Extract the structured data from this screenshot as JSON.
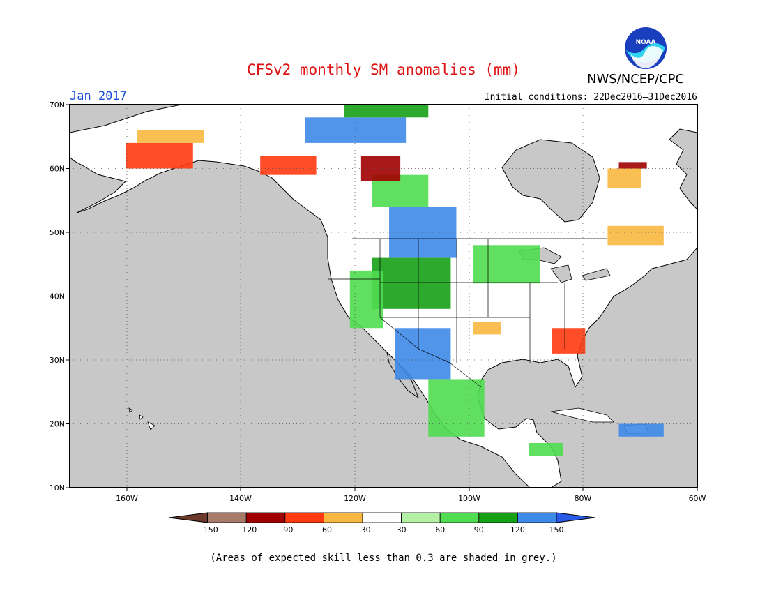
{
  "title": "CFSv2 monthly SM anomalies (mm)",
  "month": "Jan 2017",
  "initial_conditions": "Initial conditions: 22Dec2016–31Dec2016",
  "agency": "NWS/NCEP/CPC",
  "logo_text": "NOAA",
  "footnote": "(Areas of expected skill less than 0.3 are shaded in grey.)",
  "map": {
    "lon_range": [
      -172,
      -60
    ],
    "lat_range": [
      10,
      70
    ],
    "lat_labels": [
      "10N",
      "20N",
      "30N",
      "40N",
      "50N",
      "60N",
      "70N"
    ],
    "lon_labels": [
      "160W",
      "140W",
      "120W",
      "100W",
      "80W",
      "60W"
    ],
    "gridlines": true,
    "colors": {
      "grey_low_skill": "#c8c8c8",
      "land": "#ffffff",
      "coast": "#000000"
    }
  },
  "colorbar": {
    "ticks": [
      "−150",
      "−120",
      "−90",
      "−60",
      "−30",
      "30",
      "60",
      "90",
      "120",
      "150"
    ],
    "colors": [
      "#6b3a2a",
      "#a87a6a",
      "#a00000",
      "#ff3a10",
      "#f8b840",
      "#ffffff",
      "#b4f0a4",
      "#50dc50",
      "#16a016",
      "#3e8ae8",
      "#2a5ae8"
    ]
  },
  "anomaly_regions": [
    {
      "lon": [
        -115,
        -103
      ],
      "lat": [
        46,
        54
      ],
      "color": "#3e8ae8"
    },
    {
      "lon": [
        -118,
        -104
      ],
      "lat": [
        38,
        46
      ],
      "color": "#16a016"
    },
    {
      "lon": [
        -114,
        -104
      ],
      "lat": [
        27,
        35
      ],
      "color": "#3e8ae8"
    },
    {
      "lon": [
        -108,
        -98
      ],
      "lat": [
        18,
        27
      ],
      "color": "#50dc50"
    },
    {
      "lon": [
        -122,
        -116
      ],
      "lat": [
        35,
        44
      ],
      "color": "#50dc50"
    },
    {
      "lon": [
        -100,
        -88
      ],
      "lat": [
        42,
        48
      ],
      "color": "#50dc50"
    },
    {
      "lon": [
        -118,
        -108
      ],
      "lat": [
        54,
        59
      ],
      "color": "#50dc50"
    },
    {
      "lon": [
        -138,
        -128
      ],
      "lat": [
        59,
        62
      ],
      "color": "#ff3a10"
    },
    {
      "lon": [
        -120,
        -113
      ],
      "lat": [
        58,
        62
      ],
      "color": "#a00000"
    },
    {
      "lon": [
        -162,
        -150
      ],
      "lat": [
        60,
        64
      ],
      "color": "#ff3a10"
    },
    {
      "lon": [
        -160,
        -148
      ],
      "lat": [
        64,
        66
      ],
      "color": "#f8b840"
    },
    {
      "lon": [
        -76,
        -70
      ],
      "lat": [
        57,
        60
      ],
      "color": "#f8b840"
    },
    {
      "lon": [
        -74,
        -69
      ],
      "lat": [
        60,
        61
      ],
      "color": "#a00000"
    },
    {
      "lon": [
        -76,
        -66
      ],
      "lat": [
        48,
        51
      ],
      "color": "#f8b840"
    },
    {
      "lon": [
        -86,
        -80
      ],
      "lat": [
        31,
        35
      ],
      "color": "#ff3a10"
    },
    {
      "lon": [
        -100,
        -95
      ],
      "lat": [
        34,
        36
      ],
      "color": "#f8b840"
    },
    {
      "lon": [
        -130,
        -112
      ],
      "lat": [
        64,
        68
      ],
      "color": "#3e8ae8"
    },
    {
      "lon": [
        -123,
        -108
      ],
      "lat": [
        68,
        70
      ],
      "color": "#16a016"
    },
    {
      "lon": [
        -90,
        -84
      ],
      "lat": [
        15,
        17
      ],
      "color": "#50dc50"
    },
    {
      "lon": [
        -74,
        -66
      ],
      "lat": [
        18,
        20
      ],
      "color": "#3e8ae8"
    }
  ]
}
